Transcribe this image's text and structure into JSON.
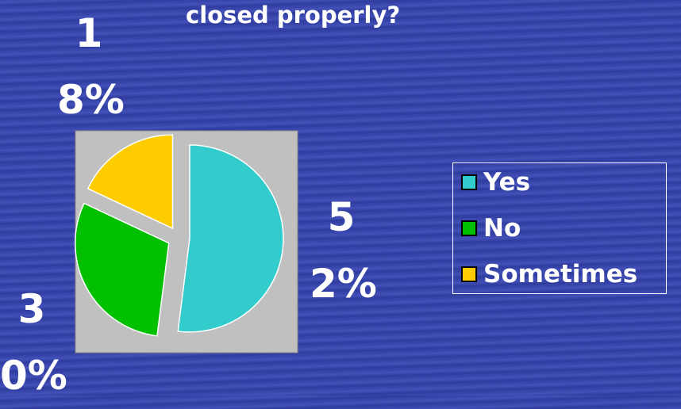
{
  "chart_data": {
    "type": "pie",
    "title": "closed properly?",
    "categories": [
      "Yes",
      "No",
      "Sometimes"
    ],
    "values": [
      52,
      30,
      18
    ],
    "value_labels": [
      "52%",
      "30%",
      "18%"
    ],
    "colors": [
      "#33cccc",
      "#00c000",
      "#ffcc00"
    ],
    "legend": "right"
  }
}
